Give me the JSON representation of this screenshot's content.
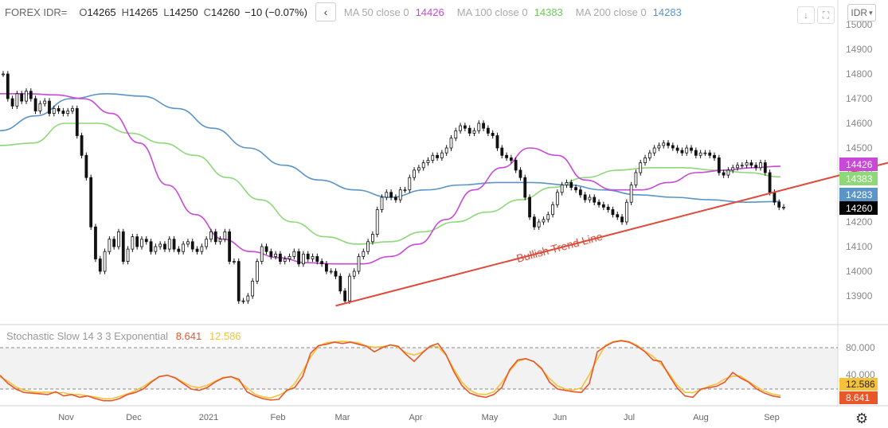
{
  "header": {
    "symbol": "FOREX IDR=",
    "open_label": "O",
    "open": "14265",
    "high_label": "H",
    "high": "14265",
    "low_label": "L",
    "low": "14250",
    "close_label": "C",
    "close": "14260",
    "change": "−10 (−0.07%)",
    "collapse_icon": "chevron-left-icon",
    "ma50_label": "MA 50 close 0",
    "ma50_value": "14426",
    "ma100_label": "MA 100 close 0",
    "ma100_value": "14383",
    "ma200_label": "MA 200 close 0",
    "ma200_value": "14283"
  },
  "toolbar": {
    "currency": "IDR",
    "download_icon": "download-icon",
    "fullscreen_icon": "fullscreen-icon",
    "settings_icon": "gear-icon"
  },
  "colors": {
    "ma50": "#c848d8",
    "ma100": "#8ed87a",
    "ma200": "#5b94c8",
    "trend": "#e04a3a",
    "candle": "#111111",
    "stoch_k": "#e8562a",
    "stoch_d": "#f5c23a",
    "price_label": "#000000"
  },
  "chart_data": {
    "type": "candlestick",
    "price_axis": {
      "ticks": [
        13900,
        14000,
        14100,
        14200,
        14300,
        14400,
        14500,
        14600,
        14700,
        14800,
        14900,
        15000
      ],
      "ymin": 13830,
      "ymax": 15030
    },
    "time_axis_labels": [
      "Nov",
      "Dec",
      "2021",
      "Feb",
      "Mar",
      "Apr",
      "May",
      "Jun",
      "Jul",
      "Aug",
      "Sep"
    ],
    "price_labels": {
      "ma50": "14426",
      "ma100": "14383",
      "ma200": "14283",
      "last": "14260"
    },
    "annotation": "Bullish Trend Line",
    "close_series": [
      14800,
      14700,
      14670,
      14720,
      14690,
      14730,
      14700,
      14650,
      14680,
      14690,
      14640,
      14660,
      14650,
      14640,
      14650,
      14660,
      14550,
      14470,
      14380,
      14180,
      14050,
      14000,
      14080,
      14130,
      14100,
      14160,
      14040,
      14090,
      14140,
      14100,
      14130,
      14120,
      14080,
      14100,
      14110,
      14090,
      14130,
      14090,
      14080,
      14110,
      14120,
      14090,
      14080,
      14100,
      14130,
      14160,
      14120,
      14130,
      14160,
      14040,
      14040,
      13880,
      13880,
      13900,
      13960,
      14040,
      14100,
      14080,
      14060,
      14070,
      14040,
      14050,
      14060,
      14080,
      14030,
      14070,
      14050,
      14060,
      14040,
      14030,
      14000,
      14000,
      13980,
      13920,
      13880,
      13980,
      14000,
      14060,
      14080,
      14120,
      14150,
      14250,
      14300,
      14320,
      14300,
      14290,
      14330,
      14330,
      14380,
      14410,
      14420,
      14440,
      14450,
      14470,
      14460,
      14480,
      14500,
      14540,
      14570,
      14590,
      14580,
      14560,
      14570,
      14600,
      14580,
      14560,
      14550,
      14500,
      14470,
      14460,
      14450,
      14410,
      14380,
      14300,
      14220,
      14180,
      14200,
      14210,
      14230,
      14270,
      14320,
      14350,
      14360,
      14340,
      14330,
      14310,
      14290,
      14300,
      14280,
      14270,
      14260,
      14250,
      14230,
      14220,
      14200,
      14280,
      14350,
      14400,
      14440,
      14460,
      14480,
      14500,
      14510,
      14520,
      14510,
      14500,
      14490,
      14480,
      14500,
      14490,
      14470,
      14480,
      14480,
      14470,
      14460,
      14400,
      14390,
      14410,
      14420,
      14430,
      14430,
      14440,
      14430,
      14420,
      14440,
      14400,
      14320,
      14280,
      14260,
      14260
    ],
    "ma50_series": [
      14720,
      14720,
      14715,
      14700,
      14640,
      14520,
      14350,
      14230,
      14130,
      14080,
      14055,
      14035,
      14030,
      14030,
      14060,
      14110,
      14210,
      14330,
      14420,
      14500,
      14470,
      14370,
      14330,
      14330,
      14360,
      14400,
      14410,
      14420,
      14426
    ],
    "ma100_series": [
      14510,
      14520,
      14600,
      14600,
      14560,
      14520,
      14470,
      14380,
      14290,
      14200,
      14140,
      14110,
      14120,
      14160,
      14200,
      14240,
      14290,
      14340,
      14380,
      14410,
      14420,
      14420,
      14410,
      14400,
      14383
    ],
    "ma200_series": [
      14570,
      14630,
      14700,
      14720,
      14710,
      14660,
      14580,
      14500,
      14430,
      14370,
      14330,
      14300,
      14330,
      14350,
      14360,
      14360,
      14350,
      14330,
      14310,
      14300,
      14290,
      14280,
      14283
    ],
    "trend_line": {
      "x0_index": 72,
      "y0": 13860,
      "x1_index": 190,
      "y1": 14470
    },
    "stochastic": {
      "label": "Stochastic Slow 14 3 3 Exponential",
      "k_value": "8.641",
      "d_value": "12.586",
      "levels": [
        80,
        20
      ],
      "axis_ticks": [
        "80.000",
        "40.000"
      ],
      "k_series": [
        40,
        28,
        20,
        15,
        14,
        13,
        12,
        16,
        10,
        12,
        8,
        10,
        6,
        3,
        3,
        6,
        12,
        15,
        20,
        30,
        38,
        40,
        36,
        28,
        20,
        18,
        22,
        30,
        36,
        38,
        34,
        16,
        10,
        6,
        4,
        5,
        18,
        22,
        38,
        72,
        83,
        85,
        88,
        86,
        88,
        85,
        82,
        74,
        80,
        84,
        82,
        70,
        60,
        72,
        82,
        86,
        70,
        45,
        25,
        14,
        10,
        8,
        12,
        22,
        48,
        62,
        64,
        60,
        50,
        30,
        20,
        18,
        16,
        15,
        28,
        74,
        82,
        88,
        90,
        88,
        82,
        74,
        62,
        60,
        40,
        22,
        10,
        8,
        20,
        22,
        24,
        30,
        44,
        36,
        30,
        20,
        14,
        10,
        8
      ]
    }
  }
}
